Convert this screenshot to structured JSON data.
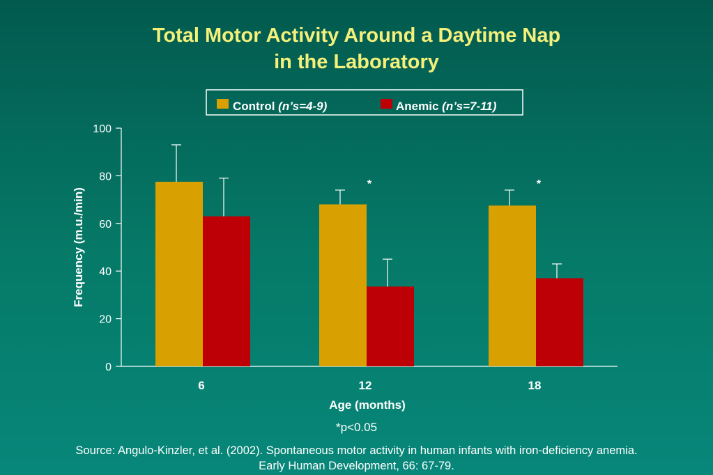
{
  "title_line1": "Total Motor Activity Around a Daytime Nap",
  "title_line2": "in the Laboratory",
  "footnote": "*p<0.05",
  "source_line1": "Source: Angulo-Kinzler, et al. (2002). Spontaneous motor activity in human infants with iron-deficiency anemia.",
  "source_line2": "Early Human Development, 66: 67-79.",
  "colors": {
    "control": "#d8a000",
    "anemic": "#bd0006",
    "title": "#f4f07a"
  },
  "chart_data": {
    "type": "bar",
    "categories": [
      "6",
      "12",
      "18"
    ],
    "xlabel": "Age (months)",
    "ylabel": "Frequency (m.u./min)",
    "ylim": [
      0,
      100
    ],
    "yticks": [
      0,
      20,
      40,
      60,
      80,
      100
    ],
    "legend_position": "top-center",
    "series": [
      {
        "name": "Control",
        "note": "(n’s=4-9)",
        "values": [
          77.5,
          68,
          67.5
        ],
        "error_upper": [
          93,
          74,
          74
        ]
      },
      {
        "name": "Anemic",
        "note": "(n’s=7-11)",
        "values": [
          63,
          33.5,
          37
        ],
        "error_upper": [
          79,
          45,
          43
        ]
      }
    ],
    "significance": [
      "",
      "*",
      "*"
    ]
  }
}
